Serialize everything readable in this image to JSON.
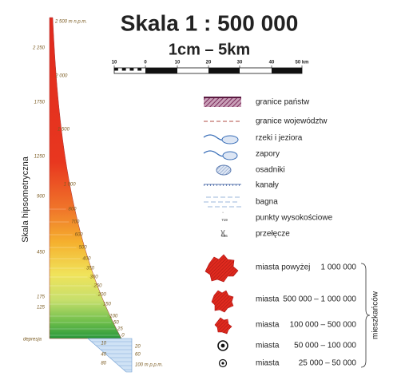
{
  "title": "Skala 1 : 500 000",
  "subtitle": "1cm – 5km",
  "scale_bar": [
    "10",
    "0",
    "10",
    "20",
    "30",
    "40",
    "50 km"
  ],
  "hypsometry": {
    "label": "Skala hipsometryczna",
    "left_labels": [
      "2 250",
      "1750",
      "1250",
      "900",
      "450",
      "175",
      "125",
      "depresja"
    ],
    "right_labels": [
      "2 500 m n.p.m.",
      "2 000",
      "1 500",
      "1 000",
      "800",
      "700",
      "600",
      "500",
      "400",
      "350",
      "300",
      "250",
      "200",
      "150",
      "100",
      "50",
      "25",
      "0"
    ],
    "depth_left": [
      "10",
      "40",
      "80"
    ],
    "depth_right": [
      "20",
      "60",
      "100 m p.p.m."
    ]
  },
  "legend": [
    {
      "label": "granice państw"
    },
    {
      "label": "granice województw"
    },
    {
      "label": "rzeki i jeziora"
    },
    {
      "label": "zapory"
    },
    {
      "label": "osadniki"
    },
    {
      "label": "kanały"
    },
    {
      "label": "bagna"
    },
    {
      "label": "punkty wysokościowe",
      "symbol_label": "719"
    },
    {
      "label": "przełęcze",
      "symbol_label": "606"
    }
  ],
  "cities": [
    {
      "label": "miasta powyżej",
      "range": "1 000 000"
    },
    {
      "label": "miasta",
      "range": "500 000 – 1 000 000"
    },
    {
      "label": "miasta",
      "range": "100 000 – 500 000"
    },
    {
      "label": "miasta",
      "range": "50 000 – 100 000"
    },
    {
      "label": "miasta",
      "range": "25 000 – 50 000"
    }
  ],
  "unit": "mieszkańców"
}
